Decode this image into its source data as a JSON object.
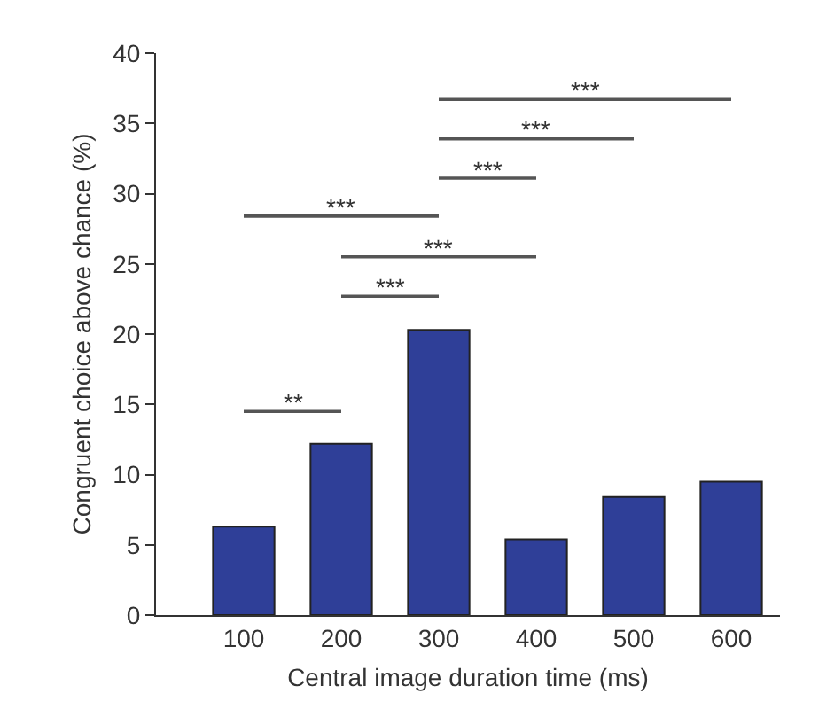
{
  "chart_data": {
    "type": "bar",
    "xlabel": "Central image duration time (ms)",
    "ylabel": "Congruent choice above chance (%)",
    "x": [
      100,
      200,
      300,
      400,
      500,
      600
    ],
    "xlim": [
      10,
      650
    ],
    "xticks": [
      100,
      200,
      300,
      400,
      500,
      600
    ],
    "ylim": [
      0,
      40
    ],
    "yticks": [
      0,
      5,
      10,
      15,
      20,
      25,
      30,
      35,
      40
    ],
    "grid": false,
    "series": [
      {
        "color": "#2f3f98",
        "values": [
          6.3,
          12.2,
          20.3,
          5.4,
          8.4,
          9.5
        ]
      },
      {
        "type": "line",
        "color": "#555555",
        "x": [
          100,
          200
        ],
        "values": [
          14.5,
          14.5
        ]
      },
      {
        "type": "line",
        "color": "#555555",
        "x": [
          200,
          300
        ],
        "values": [
          22.7,
          22.7
        ]
      },
      {
        "type": "line",
        "color": "#555555",
        "x": [
          200,
          400
        ],
        "values": [
          25.5,
          25.5
        ]
      },
      {
        "type": "line",
        "color": "#555555",
        "x": [
          100,
          300
        ],
        "values": [
          28.4,
          28.4
        ]
      },
      {
        "type": "line",
        "color": "#555555",
        "x": [
          300,
          400
        ],
        "values": [
          31.1,
          31.1
        ]
      },
      {
        "type": "line",
        "color": "#555555",
        "x": [
          300,
          500
        ],
        "values": [
          33.9,
          33.9
        ]
      },
      {
        "type": "line",
        "color": "#555555",
        "x": [
          300,
          600
        ],
        "values": [
          36.7,
          36.7
        ]
      }
    ],
    "annotations": [
      {
        "text": "**",
        "x": 150,
        "y": 14.5
      },
      {
        "text": "***",
        "x": 250,
        "y": 22.7
      },
      {
        "text": "***",
        "x": 300,
        "y": 25.5
      },
      {
        "text": "***",
        "x": 200,
        "y": 28.4
      },
      {
        "text": "***",
        "x": 350,
        "y": 31.1
      },
      {
        "text": "***",
        "x": 400,
        "y": 33.9
      },
      {
        "text": "***",
        "x": 450,
        "y": 36.7
      }
    ]
  }
}
